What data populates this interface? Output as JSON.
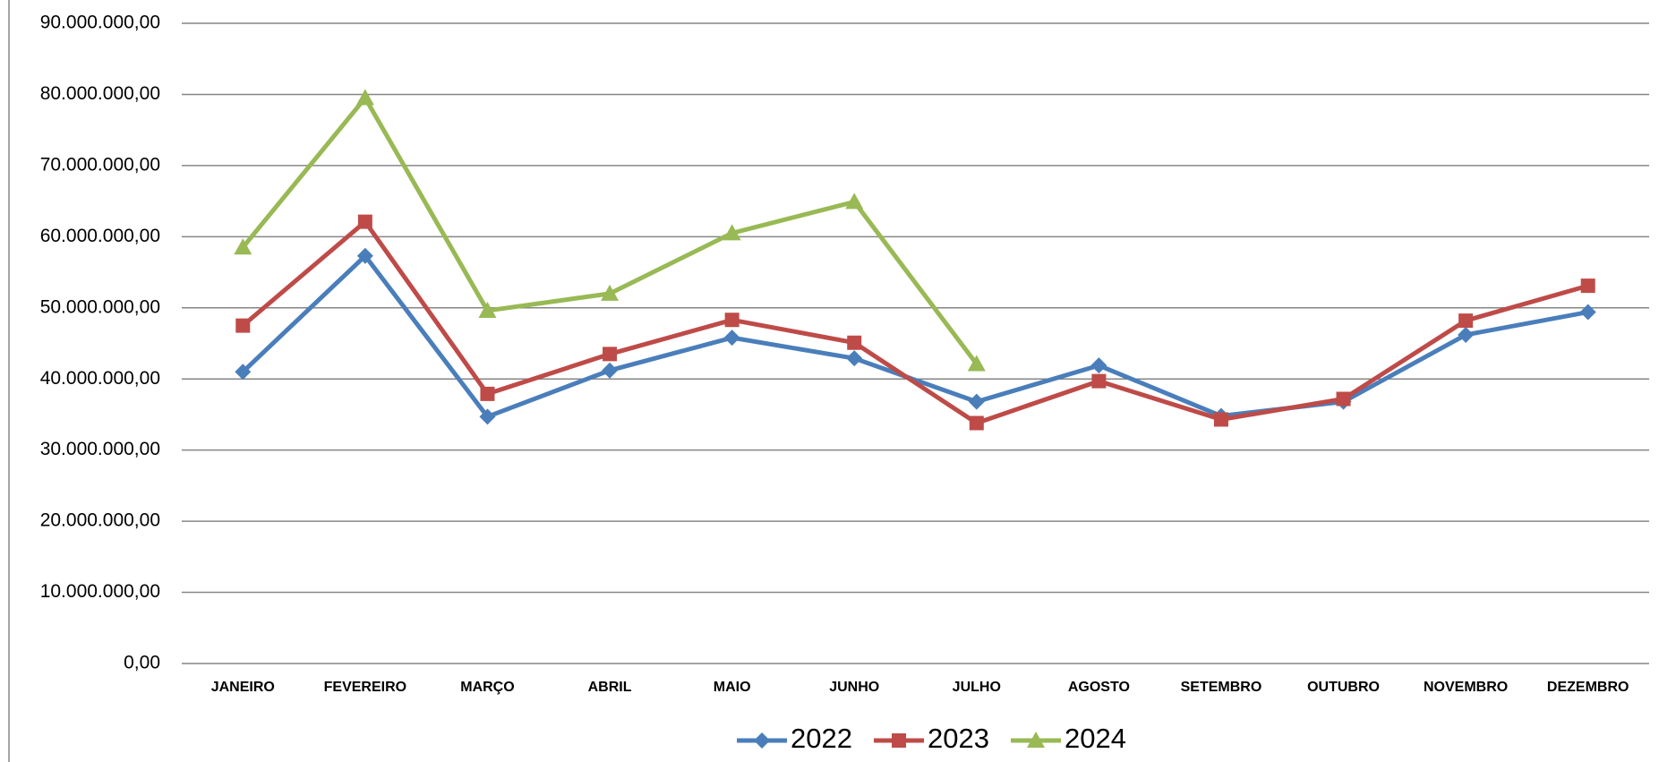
{
  "chart_data": {
    "type": "line",
    "categories": [
      "JANEIRO",
      "FEVEREIRO",
      "MARÇO",
      "ABRIL",
      "MAIO",
      "JUNHO",
      "JULHO",
      "AGOSTO",
      "SETEMBRO",
      "OUTUBRO",
      "NOVEMBRO",
      "DEZEMBRO"
    ],
    "series": [
      {
        "name": "2022",
        "color": "#4a7ebb",
        "marker": "diamond",
        "values": [
          41000000,
          57300000,
          34700000,
          41200000,
          45800000,
          42900000,
          36800000,
          41900000,
          34800000,
          36800000,
          46200000,
          49400000
        ]
      },
      {
        "name": "2023",
        "color": "#be4b48",
        "marker": "square",
        "values": [
          47500000,
          62100000,
          37900000,
          43500000,
          48300000,
          45100000,
          33800000,
          39700000,
          34300000,
          37200000,
          48200000,
          53100000
        ]
      },
      {
        "name": "2024",
        "color": "#98b954",
        "marker": "triangle",
        "values": [
          58500000,
          79500000,
          49600000,
          52000000,
          60500000,
          64900000,
          42100000,
          null,
          null,
          null,
          null,
          null
        ]
      }
    ],
    "ylim": [
      0,
      90000000
    ],
    "yticks": [
      {
        "value": 0,
        "label": "0,00"
      },
      {
        "value": 10000000,
        "label": "10.000.000,00"
      },
      {
        "value": 20000000,
        "label": "20.000.000,00"
      },
      {
        "value": 30000000,
        "label": "30.000.000,00"
      },
      {
        "value": 40000000,
        "label": "40.000.000,00"
      },
      {
        "value": 50000000,
        "label": "50.000.000,00"
      },
      {
        "value": 60000000,
        "label": "60.000.000,00"
      },
      {
        "value": 70000000,
        "label": "70.000.000,00"
      },
      {
        "value": 80000000,
        "label": "80.000.000,00"
      },
      {
        "value": 90000000,
        "label": "90.000.000,00"
      }
    ],
    "grid": true,
    "legend": "bottom"
  }
}
